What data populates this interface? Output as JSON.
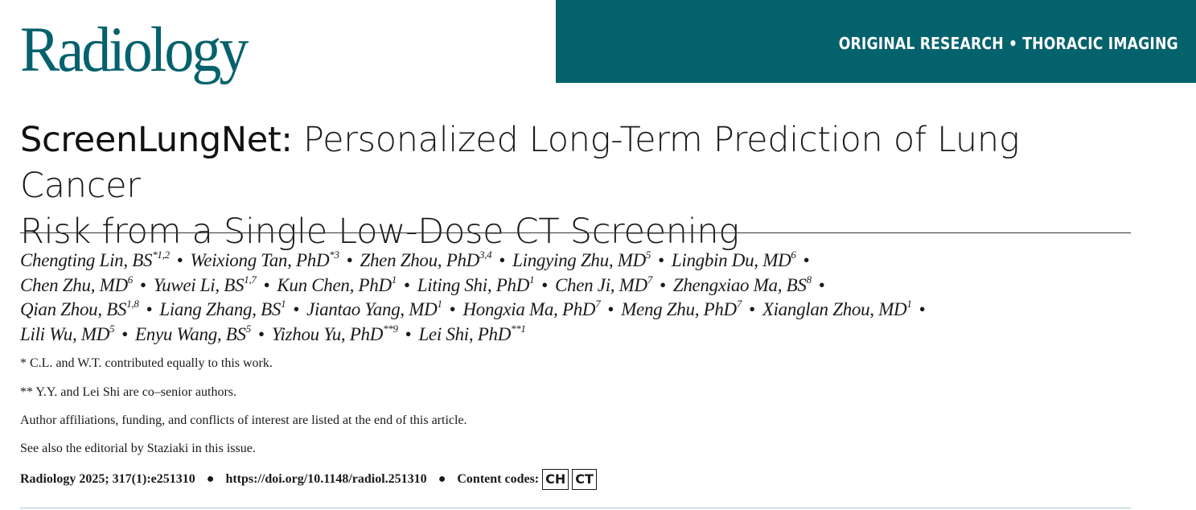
{
  "journal": {
    "logo": "Radiology",
    "banner": "ORIGINAL RESEARCH • THORACIC IMAGING"
  },
  "title": {
    "lead": "ScreenLungNet:",
    "rest_line1": " Personalized Long-Term Prediction of Lung Cancer",
    "line2": "Risk from a Single Low-Dose CT Screening"
  },
  "authors": {
    "lines": [
      [
        {
          "name": "Chengting Lin, BS",
          "sup": "*1,2"
        },
        {
          "name": "Weixiong Tan, PhD",
          "sup": "*3"
        },
        {
          "name": "Zhen Zhou, PhD",
          "sup": "3,4"
        },
        {
          "name": "Lingying Zhu, MD",
          "sup": "5"
        },
        {
          "name": "Lingbin Du, MD",
          "sup": "6"
        }
      ],
      [
        {
          "name": "Chen Zhu, MD",
          "sup": "6"
        },
        {
          "name": "Yuwei Li, BS",
          "sup": "1,7"
        },
        {
          "name": "Kun Chen, PhD",
          "sup": "1"
        },
        {
          "name": "Liting Shi, PhD",
          "sup": "1"
        },
        {
          "name": "Chen Ji, MD",
          "sup": "7"
        },
        {
          "name": "Zhengxiao Ma, BS",
          "sup": "8"
        }
      ],
      [
        {
          "name": "Qian Zhou, BS",
          "sup": "1,8"
        },
        {
          "name": "Liang Zhang, BS",
          "sup": "1"
        },
        {
          "name": "Jiantao Yang, MD",
          "sup": "1"
        },
        {
          "name": "Hongxia Ma, PhD",
          "sup": "7"
        },
        {
          "name": "Meng Zhu, PhD",
          "sup": "7"
        },
        {
          "name": "Xianglan Zhou, MD",
          "sup": "1"
        }
      ],
      [
        {
          "name": "Lili Wu, MD",
          "sup": "5"
        },
        {
          "name": "Enyu Wang, BS",
          "sup": "5"
        },
        {
          "name": "Yizhou Yu, PhD",
          "sup": "**9"
        },
        {
          "name": "Lei Shi, PhD",
          "sup": "**1"
        }
      ]
    ],
    "separator": "•"
  },
  "notes": {
    "equal": "* C.L. and W.T. contributed equally to this work.",
    "senior": "** Y.Y. and Lei Shi are co–senior authors.",
    "affiliations": "Author affiliations, funding, and conflicts of interest are listed at the end of this article.",
    "editorial": "See also the editorial by Staziaki in this issue."
  },
  "citation": {
    "ref": "Radiology 2025; 317(1):e251310",
    "doi": "https://doi.org/10.1148/radiol.251310",
    "codes_label": "Content codes:",
    "codes": [
      "CH",
      "CT"
    ],
    "dot": "●"
  }
}
